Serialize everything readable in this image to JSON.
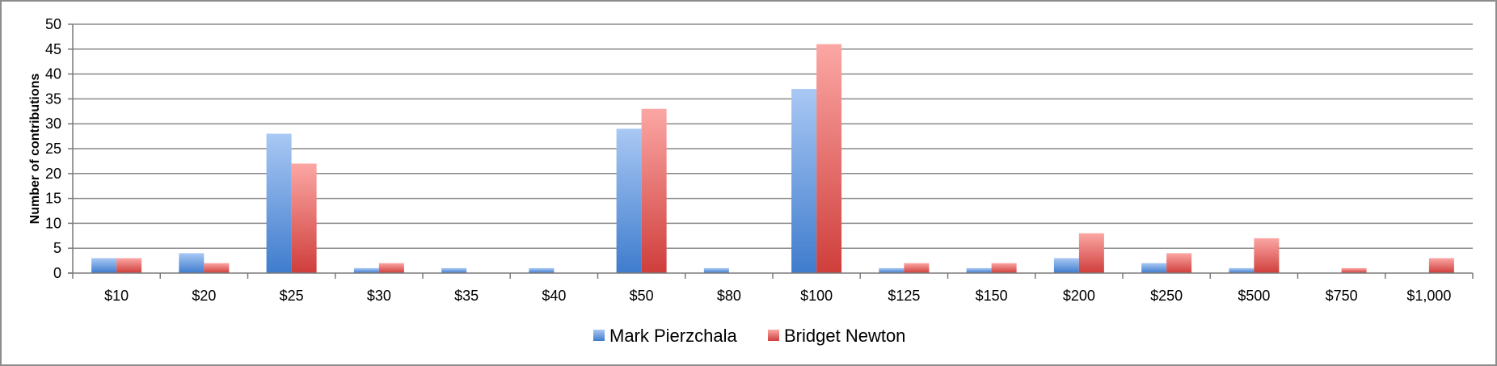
{
  "chart_data": {
    "type": "bar",
    "title": "",
    "xlabel": "",
    "ylabel": "Number of contributions",
    "ylim": [
      0,
      50
    ],
    "yticks": [
      0,
      5,
      10,
      15,
      20,
      25,
      30,
      35,
      40,
      45,
      50
    ],
    "grid": true,
    "legend_position": "bottom",
    "categories": [
      "$10",
      "$20",
      "$25",
      "$30",
      "$35",
      "$40",
      "$50",
      "$80",
      "$100",
      "$125",
      "$150",
      "$200",
      "$250",
      "$500",
      "$750",
      "$1,000"
    ],
    "series": [
      {
        "name": "Mark Pierzchala",
        "color": "#4f81bd",
        "values": [
          3,
          4,
          28,
          1,
          1,
          1,
          29,
          1,
          37,
          1,
          1,
          3,
          2,
          1,
          0,
          0
        ]
      },
      {
        "name": "Bridget Newton",
        "color": "#c0504d",
        "values": [
          3,
          2,
          22,
          2,
          0,
          0,
          33,
          0,
          46,
          2,
          2,
          8,
          4,
          7,
          1,
          3
        ]
      }
    ]
  }
}
